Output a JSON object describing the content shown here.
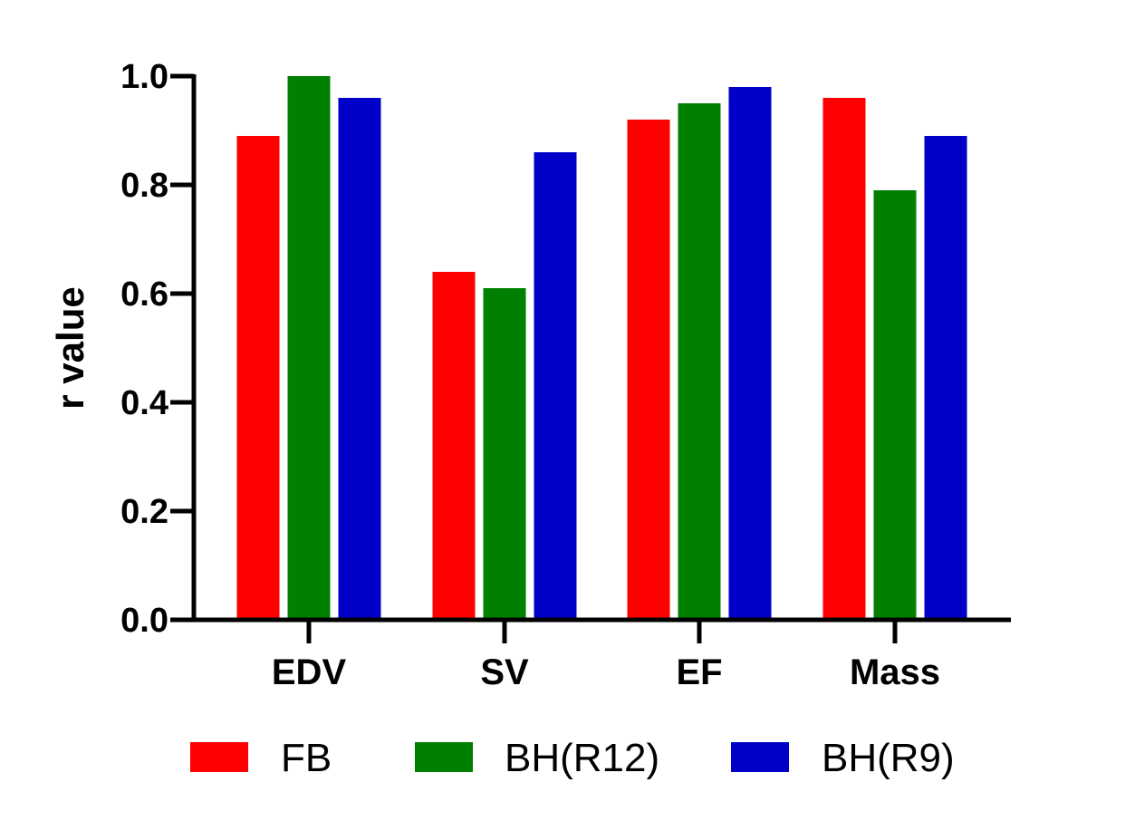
{
  "chart_data": {
    "type": "bar",
    "title": "",
    "xlabel": "",
    "ylabel": "r value",
    "categories": [
      "EDV",
      "SV",
      "EF",
      "Mass"
    ],
    "series": [
      {
        "name": "FB",
        "color": "#ff0000",
        "values": [
          0.89,
          0.64,
          0.92,
          0.96
        ]
      },
      {
        "name": "BH(R12)",
        "color": "#008000",
        "values": [
          1.0,
          0.61,
          0.95,
          0.79
        ]
      },
      {
        "name": "BH(R9)",
        "color": "#0000c8",
        "values": [
          0.96,
          0.86,
          0.98,
          0.89
        ]
      }
    ],
    "ylim": [
      0,
      1.0
    ],
    "yticks": [
      "0.0",
      "0.2",
      "0.4",
      "0.6",
      "0.8",
      "1.0"
    ],
    "grid": false,
    "legend_position": "bottom"
  }
}
